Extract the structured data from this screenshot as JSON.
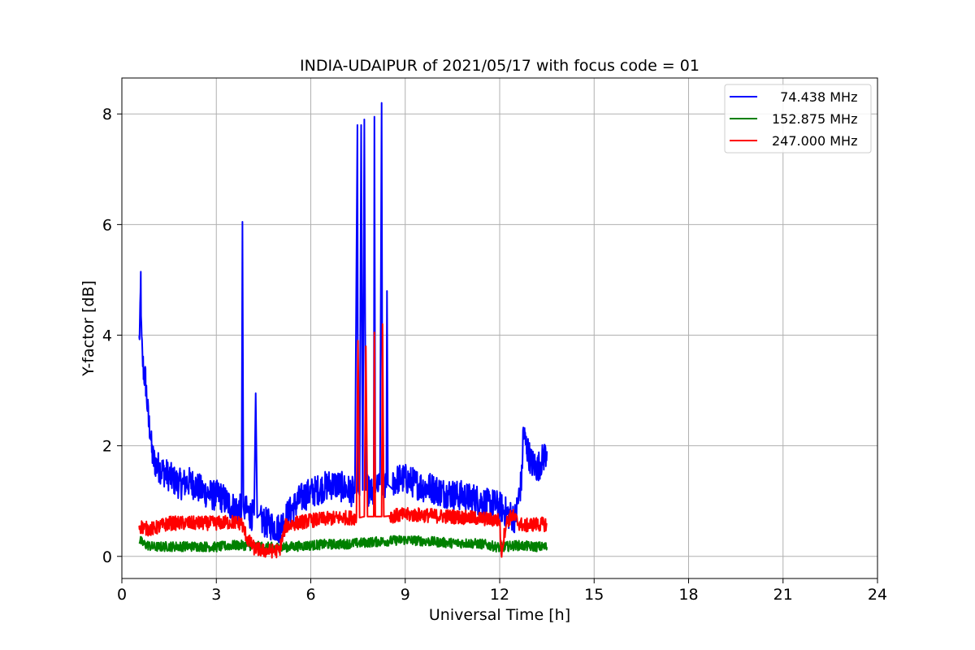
{
  "chart_data": {
    "type": "line",
    "title": "INDIA-UDAIPUR of 2021/05/17 with focus code = 01",
    "xlabel": "Universal Time [h]",
    "ylabel": "Y-factor [dB]",
    "xlim": [
      0,
      24
    ],
    "ylim": [
      -0.4,
      8.65
    ],
    "xticks": [
      0,
      3,
      6,
      9,
      12,
      15,
      18,
      21,
      24
    ],
    "yticks": [
      0,
      2,
      4,
      6,
      8
    ],
    "xtick_labels": [
      "0",
      "3",
      "6",
      "9",
      "12",
      "15",
      "18",
      "21",
      "24"
    ],
    "ytick_labels": [
      "0",
      "2",
      "4",
      "6",
      "8"
    ],
    "grid": true,
    "legend_position": "top-right",
    "series": [
      {
        "name": "74.438 MHz",
        "legend_label": "  74.438 MHz",
        "color": "#0000ff",
        "noise": 0.28,
        "x": [
          0.55,
          0.58,
          0.6,
          0.62,
          0.65,
          0.7,
          0.75,
          0.8,
          0.85,
          0.9,
          0.95,
          1.0,
          1.05,
          1.1,
          1.2,
          1.3,
          1.5,
          1.7,
          1.9,
          2.1,
          2.3,
          2.5,
          2.7,
          2.9,
          3.1,
          3.3,
          3.5,
          3.7,
          3.8,
          3.83,
          3.86,
          3.9,
          4.0,
          4.1,
          4.2,
          4.25,
          4.3,
          4.4,
          4.6,
          4.8,
          5.0,
          5.2,
          5.4,
          5.6,
          5.8,
          6.0,
          6.2,
          6.4,
          6.6,
          6.8,
          7.0,
          7.2,
          7.4,
          7.48,
          7.5,
          7.55,
          7.6,
          7.65,
          7.7,
          7.75,
          7.8,
          7.9,
          8.0,
          8.02,
          8.05,
          8.1,
          8.2,
          8.25,
          8.28,
          8.3,
          8.4,
          8.42,
          8.45,
          8.6,
          8.8,
          9.0,
          9.2,
          9.4,
          9.6,
          9.8,
          10.0,
          10.2,
          10.4,
          10.6,
          10.8,
          11.0,
          11.2,
          11.4,
          11.6,
          11.8,
          12.0,
          12.1,
          12.2,
          12.3,
          12.5,
          12.7,
          12.75,
          12.8,
          13.0,
          13.2,
          13.4,
          13.5
        ],
        "y": [
          3.9,
          4.3,
          5.05,
          4.0,
          3.6,
          3.3,
          3.2,
          2.8,
          2.4,
          2.3,
          1.9,
          1.75,
          1.7,
          1.65,
          1.6,
          1.55,
          1.45,
          1.35,
          1.3,
          1.35,
          1.3,
          1.2,
          1.15,
          1.1,
          1.1,
          1.0,
          0.9,
          0.85,
          0.85,
          6.05,
          0.9,
          0.85,
          0.8,
          0.75,
          0.75,
          2.95,
          0.7,
          0.65,
          0.6,
          0.55,
          0.5,
          0.7,
          0.85,
          1.0,
          1.1,
          1.15,
          1.2,
          1.25,
          1.3,
          1.3,
          1.25,
          1.2,
          1.15,
          7.8,
          1.2,
          1.1,
          7.8,
          1.2,
          7.9,
          1.2,
          1.2,
          1.15,
          1.1,
          7.95,
          1.15,
          1.2,
          1.3,
          8.2,
          1.3,
          1.3,
          1.25,
          4.8,
          1.3,
          1.35,
          1.4,
          1.4,
          1.35,
          1.3,
          1.25,
          1.25,
          1.2,
          1.15,
          1.15,
          1.1,
          1.1,
          1.05,
          1.05,
          1.0,
          0.95,
          0.95,
          0.9,
          0.85,
          0.8,
          0.75,
          0.7,
          1.4,
          2.3,
          2.1,
          1.7,
          1.6,
          1.8,
          1.9
        ]
      },
      {
        "name": "152.875 MHz",
        "legend_label": "152.875 MHz",
        "color": "#008000",
        "noise": 0.09,
        "x": [
          0.55,
          0.7,
          1.0,
          1.5,
          2.0,
          2.5,
          3.0,
          3.5,
          4.0,
          4.5,
          5.0,
          5.5,
          6.0,
          6.5,
          7.0,
          7.5,
          8.0,
          8.5,
          9.0,
          9.5,
          10.0,
          10.5,
          11.0,
          11.5,
          12.0,
          12.5,
          13.0,
          13.5
        ],
        "y": [
          0.3,
          0.22,
          0.17,
          0.18,
          0.18,
          0.18,
          0.17,
          0.2,
          0.2,
          0.17,
          0.16,
          0.18,
          0.2,
          0.22,
          0.22,
          0.24,
          0.26,
          0.28,
          0.3,
          0.28,
          0.26,
          0.24,
          0.24,
          0.22,
          0.16,
          0.2,
          0.18,
          0.17
        ]
      },
      {
        "name": "247.000 MHz",
        "legend_label": "247.000 MHz",
        "color": "#ff0000",
        "noise": 0.13,
        "x": [
          0.55,
          0.8,
          1.0,
          1.5,
          2.0,
          2.5,
          3.0,
          3.5,
          3.8,
          4.0,
          4.2,
          4.5,
          4.8,
          5.0,
          5.2,
          5.5,
          6.0,
          6.5,
          7.0,
          7.45,
          7.5,
          7.55,
          7.7,
          7.75,
          7.8,
          8.0,
          8.02,
          8.05,
          8.25,
          8.28,
          8.32,
          8.5,
          9.0,
          9.5,
          10.0,
          10.5,
          11.0,
          11.5,
          12.0,
          12.05,
          12.2,
          12.4,
          12.6,
          12.8,
          13.0,
          13.2,
          13.5
        ],
        "y": [
          0.55,
          0.5,
          0.5,
          0.6,
          0.6,
          0.6,
          0.6,
          0.62,
          0.6,
          0.3,
          0.15,
          0.1,
          0.1,
          0.1,
          0.55,
          0.6,
          0.65,
          0.68,
          0.7,
          0.7,
          3.9,
          0.7,
          0.72,
          3.8,
          0.72,
          0.72,
          4.05,
          0.72,
          0.72,
          4.2,
          0.72,
          0.73,
          0.75,
          0.75,
          0.73,
          0.72,
          0.7,
          0.68,
          0.65,
          0.05,
          0.6,
          0.75,
          0.6,
          0.55,
          0.58,
          0.58,
          0.58
        ]
      }
    ]
  }
}
